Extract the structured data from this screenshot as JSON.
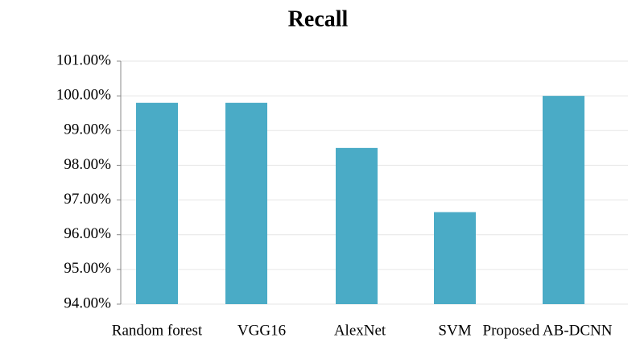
{
  "chart_data": {
    "type": "bar",
    "title": "Recall",
    "categories": [
      "Random forest",
      "VGG16",
      "AlexNet",
      "SVM",
      "Proposed AB-DCNN"
    ],
    "values": [
      99.8,
      99.8,
      98.5,
      96.65,
      100.0
    ],
    "color": "#4aabc6",
    "ylim": [
      94,
      101
    ],
    "yticks": [
      {
        "value": 94,
        "label": "94.00%"
      },
      {
        "value": 95,
        "label": "95.00%"
      },
      {
        "value": 96,
        "label": "96.00%"
      },
      {
        "value": 97,
        "label": "97.00%"
      },
      {
        "value": 98,
        "label": "98.00%"
      },
      {
        "value": 99,
        "label": "99.00%"
      },
      {
        "value": 100,
        "label": "100.00%"
      },
      {
        "value": 101,
        "label": "101.00%"
      }
    ],
    "grid": true
  }
}
